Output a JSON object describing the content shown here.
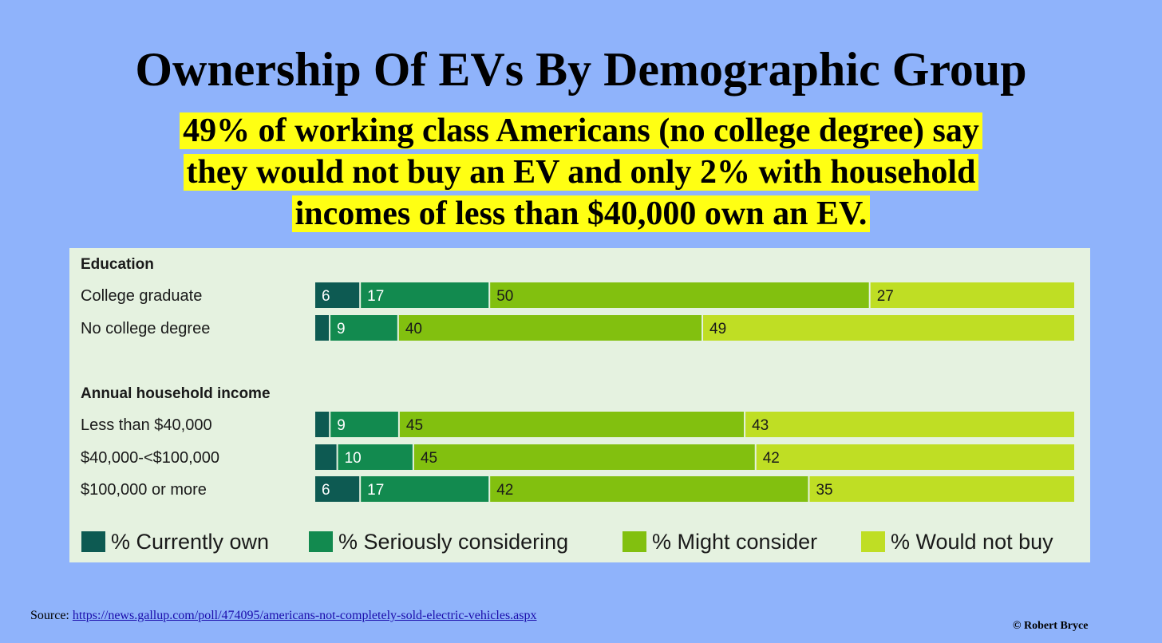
{
  "title": "Ownership Of EVs By Demographic Group",
  "subtitle_lines": [
    "49% of working class Americans (no college degree) say",
    "they would not buy an EV and only 2% with household",
    "incomes of less than $40,000 own an EV."
  ],
  "source": {
    "prefix": "Source:",
    "url_text": "https://news.gallup.com/poll/474095/americans-not-completely-sold-electric-vehicles.aspx"
  },
  "copyright": "© Robert Bryce",
  "colors": {
    "background": "#8fb3fb",
    "highlight": "#ffff13",
    "panel": "#e5f2e0"
  },
  "chart_data": {
    "type": "bar",
    "orientation": "horizontal",
    "stacked": true,
    "legend_position": "bottom",
    "groups": [
      {
        "name": "Education",
        "categories": [
          "College graduate",
          "No college degree"
        ],
        "rows": [
          [
            6,
            17,
            50,
            27
          ],
          [
            2,
            9,
            40,
            49
          ]
        ],
        "labels": [
          [
            "6",
            "17",
            "50",
            "27"
          ],
          [
            "",
            "9",
            "40",
            "49"
          ]
        ]
      },
      {
        "name": "Annual household income",
        "categories": [
          "Less than $40,000",
          "$40,000-<$100,000",
          "$100,000 or more"
        ],
        "rows": [
          [
            2,
            9,
            45,
            43
          ],
          [
            3,
            10,
            45,
            42
          ],
          [
            6,
            17,
            42,
            35
          ]
        ],
        "labels": [
          [
            "",
            "9",
            "45",
            "43"
          ],
          [
            "",
            "10",
            "45",
            "42"
          ],
          [
            "6",
            "17",
            "42",
            "35"
          ]
        ]
      }
    ],
    "series": [
      {
        "name": "% Currently own",
        "color": "#0d5a52",
        "label_color": "#ffffff"
      },
      {
        "name": "% Seriously considering",
        "color": "#128a4f",
        "label_color": "#ffffff"
      },
      {
        "name": "% Might consider",
        "color": "#82c00f",
        "label_color": "#1a1a1a"
      },
      {
        "name": "% Would not buy",
        "color": "#bfde24",
        "label_color": "#1a1a1a"
      }
    ]
  }
}
